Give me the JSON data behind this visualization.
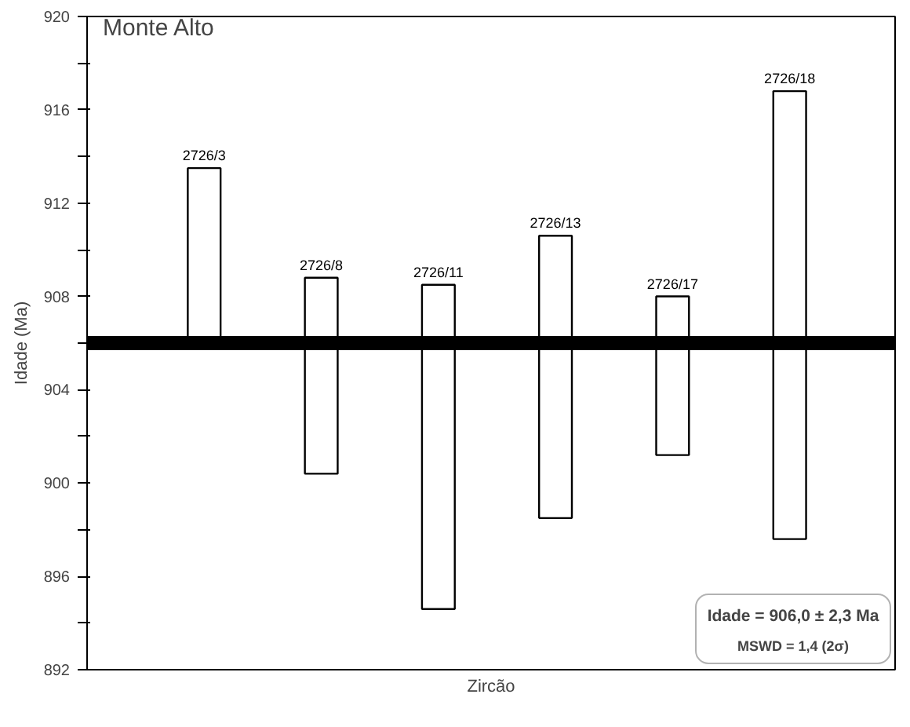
{
  "chart_data": {
    "type": "bar",
    "title": "Monte Alto",
    "xlabel": "Zircão",
    "ylabel": "Idade (Ma)",
    "categories": [
      "2726/3",
      "2726/8",
      "2726/11",
      "2726/13",
      "2726/17",
      "2726/18"
    ],
    "base": [
      906.1,
      900.4,
      894.6,
      898.5,
      901.2,
      897.6
    ],
    "values": [
      7.4,
      8.4,
      13.9,
      12.1,
      6.8,
      19.2
    ],
    "color": "#ffffff",
    "ylim": [
      892,
      920
    ],
    "yticks": [
      892,
      {
        "value": 894,
        "label": null
      },
      896,
      {
        "value": 898,
        "label": null
      },
      900,
      {
        "value": 902,
        "label": null
      },
      904,
      {
        "value": 906,
        "label": null
      },
      908,
      {
        "value": 910,
        "label": null
      },
      912,
      {
        "value": 914,
        "label": null
      },
      916,
      {
        "value": 918,
        "label": null
      },
      920
    ],
    "ref_lines": [
      {
        "axis": "y",
        "value": 906.0,
        "color": "#000000"
      }
    ],
    "annotations": [
      "Idade = 906,0 ± 2,3 Ma",
      "MSWD = 1,4 (2σ)"
    ],
    "tick_labels": "y",
    "grid": false
  }
}
